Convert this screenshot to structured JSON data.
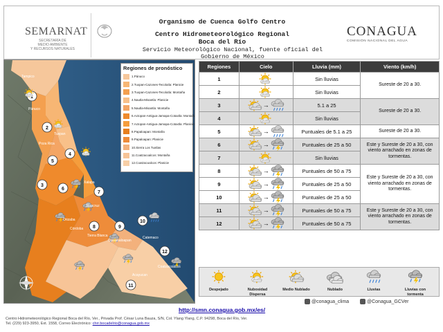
{
  "header": {
    "semarnat": "SEMARNAT",
    "semarnat_sub1": "SECRETARÍA DE",
    "semarnat_sub2": "MEDIO AMBIENTE",
    "semarnat_sub3": "Y RECURSOS NATURALES",
    "line1": "Organismo de Cuenca Golfo Centro",
    "line2": "Centro Hidrometeorológico Regional",
    "line3": "Boca del Río",
    "line4": "Servicio Meteorológico Nacional, fuente oficial del Gobierno de México",
    "conagua": "CONAGUA",
    "conagua_sub": "COMISIÓN NACIONAL DEL AGUA"
  },
  "legend": {
    "title": "Regiones de pronóstico",
    "items": [
      {
        "label": "1.Pánuco",
        "color": "#f6c79b"
      },
      {
        "label": "2.Tuxpan-Cazones-Tecolutla: Planicie",
        "color": "#f7b674"
      },
      {
        "label": "3.Tuxpan-Cazones-Tecolutla: Montaña",
        "color": "#f4a04f"
      },
      {
        "label": "4.Nautla-Misantla: Planicie",
        "color": "#f8c089"
      },
      {
        "label": "5.Nautla-Misantla: Montaña",
        "color": "#f4a564"
      },
      {
        "label": "6.Actopan-Antigua-Jamapa-Cotaxtla: Montaña",
        "color": "#ef8a2c"
      },
      {
        "label": "7.Actopan-Antigua-Jamapa-Cotaxtla: Planicie",
        "color": "#f59d3c"
      },
      {
        "label": "8.Papaloapan: Montaña",
        "color": "#e77f1e"
      },
      {
        "label": "9.Papaloapan: Planicie",
        "color": "#ee8c3a"
      },
      {
        "label": "10.Sierra Los Tuxtlas",
        "color": "#f3b17c"
      },
      {
        "label": "11.Coatzacoalcos: Montaña",
        "color": "#f7c497"
      },
      {
        "label": "12.Coatzacoalcos: Planicie",
        "color": "#f8cfa6"
      }
    ]
  },
  "map_places": [
    "Tampico",
    "Pánuco",
    "Tuxpan",
    "Poza Rica",
    "Xalapa",
    "Veracruz",
    "Orizaba",
    "Córdoba",
    "Cosamaloapan",
    "Tierra Blanca",
    "Acayucan",
    "Catemaco",
    "Coatzacoalcos"
  ],
  "table": {
    "headers": [
      "Regiones",
      "Cielo",
      "Lluvia (mm)",
      "Viento (km/h)"
    ],
    "rows": [
      {
        "region": "1",
        "rain": "Sin lluvias"
      },
      {
        "region": "2",
        "rain": "Sin lluvias"
      },
      {
        "region": "3",
        "rain": "5.1 a 25"
      },
      {
        "region": "4",
        "rain": "Sin lluvias"
      },
      {
        "region": "5",
        "rain": "Puntuales de 5.1 a 25"
      },
      {
        "region": "6",
        "rain": "Puntuales de 25 a 50"
      },
      {
        "region": "7",
        "rain": "Sin lluvias"
      },
      {
        "region": "8",
        "rain": "Puntuales de 50 a 75"
      },
      {
        "region": "9",
        "rain": "Puntuales de 25 a 50"
      },
      {
        "region": "10",
        "rain": "Puntuales de 25 a 50"
      },
      {
        "region": "11",
        "rain": "Puntuales de 50 a 75"
      },
      {
        "region": "12",
        "rain": "Puntuales de 50 a 75"
      }
    ],
    "wind": {
      "w12": "Sureste de 20 a 30.",
      "w34": "Sureste de 20 a 30.",
      "w5": "Sureste de 20 a 30.",
      "w67": "Este y Sureste de 20 a 30, con viento arrachado en zonas de tormentas.",
      "w810": "Este y Sureste de 20 a 30, con viento arrachado en zonas de tormentas.",
      "w1112": "Este y Sureste de 20 a 30, con viento arrachado en zonas de tormentas."
    }
  },
  "icons_legend": [
    "Despejado",
    "Nubosidad Dispersa",
    "Medio Nublado",
    "Nublado",
    "Lluvias",
    "Lluvias con tormenta"
  ],
  "url": "http://smn.conagua.gob.mx/es/",
  "social": {
    "twitter": "@conagua_clima",
    "facebook": "@Conagua_GCVer"
  },
  "footer": {
    "line1": "Centro Hidrometeorológico Regional Boca del Río, Ver., Privada Prof. César Luna Bauza, S/N, Col. Ylang Ylang, C.P. 94298, Boca del Río, Ver.",
    "line2": "Tel. (229) 923-3950, Ext. 1558, Correo Electrónico:",
    "email": "chrr.bocadelrio@conagua.gob.mx"
  }
}
